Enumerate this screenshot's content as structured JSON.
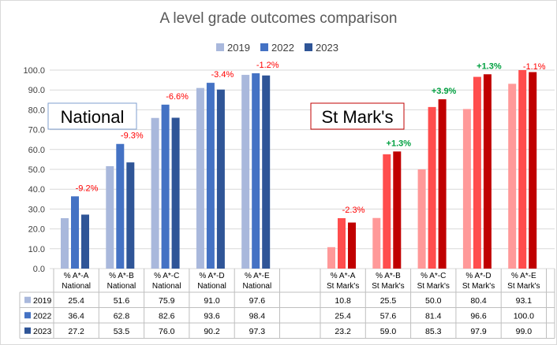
{
  "chart_data": {
    "type": "bar",
    "title": "A level grade outcomes comparison",
    "ylim": [
      0,
      100
    ],
    "yticks": [
      "0.0",
      "10.0",
      "20.0",
      "30.0",
      "40.0",
      "50.0",
      "60.0",
      "70.0",
      "80.0",
      "90.0",
      "100.0"
    ],
    "legend_position": "top",
    "group_labels": [
      "National",
      "St Mark's"
    ],
    "categories": [
      "% A*-A National",
      "% A*-B National",
      "% A*-C National",
      "% A*-D National",
      "% A*-E National",
      "% A*-A St Mark's",
      "% A*-B St Mark's",
      "% A*-C St Mark's",
      "% A*-D St Mark's",
      "% A*-E St Mark's"
    ],
    "category_lines": [
      [
        "% A*-A",
        "National"
      ],
      [
        "% A*-B",
        "National"
      ],
      [
        "% A*-C",
        "National"
      ],
      [
        "% A*-D",
        "National"
      ],
      [
        "% A*-E",
        "National"
      ],
      [
        "% A*-A",
        "St Mark's"
      ],
      [
        "% A*-B",
        "St Mark's"
      ],
      [
        "% A*-C",
        "St Mark's"
      ],
      [
        "% A*-D",
        "St Mark's"
      ],
      [
        "% A*-E",
        "St Mark's"
      ]
    ],
    "series": [
      {
        "name": "2019",
        "values": [
          25.4,
          51.6,
          75.9,
          91.0,
          97.6,
          10.8,
          25.5,
          50.0,
          80.4,
          93.1
        ],
        "display": [
          "25.4",
          "51.6",
          "75.9",
          "91.0",
          "97.6",
          "10.8",
          "25.5",
          "50.0",
          "80.4",
          "93.1"
        ]
      },
      {
        "name": "2022",
        "values": [
          36.4,
          62.8,
          82.6,
          93.6,
          98.4,
          25.4,
          57.6,
          81.4,
          96.6,
          100.0
        ],
        "display": [
          "36.4",
          "62.8",
          "82.6",
          "93.6",
          "98.4",
          "25.4",
          "57.6",
          "81.4",
          "96.6",
          "100.0"
        ]
      },
      {
        "name": "2023",
        "values": [
          27.2,
          53.5,
          76.0,
          90.2,
          97.3,
          23.2,
          59.0,
          85.3,
          97.9,
          99.0
        ],
        "display": [
          "27.2",
          "53.5",
          "76.0",
          "90.2",
          "97.3",
          "23.2",
          "59.0",
          "85.3",
          "97.9",
          "99.0"
        ]
      }
    ],
    "annotations": [
      "-9.2%",
      "-9.3%",
      "-6.6%",
      "-3.4%",
      "-1.2%",
      "-2.3%",
      "+1.3%",
      "+3.9%",
      "+1.3%",
      "-1.1%"
    ],
    "colors": {
      "national": [
        "#a9b8dc",
        "#4472c4",
        "#2f5597"
      ],
      "stmarks": [
        "#ff9999",
        "#ff4d4d",
        "#c00000"
      ],
      "negative": "#ff0000",
      "positive": "#00a040",
      "box_border": "#7f9fcf",
      "box_border_red": "#c00000"
    }
  }
}
